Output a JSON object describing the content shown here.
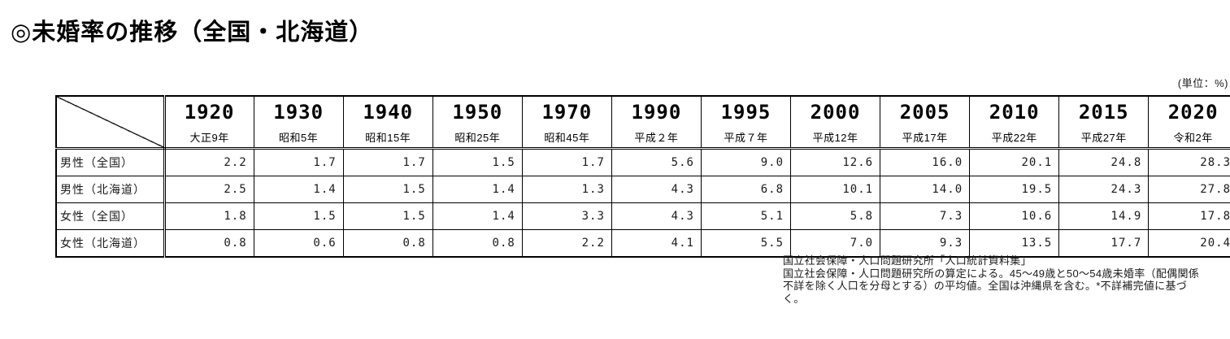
{
  "title": "◎未婚率の推移（全国・北海道）",
  "unit_label": "(単位：%)",
  "table": {
    "columns": [
      {
        "year": "1920",
        "era": "大正9年"
      },
      {
        "year": "1930",
        "era": "昭和5年"
      },
      {
        "year": "1940",
        "era": "昭和15年"
      },
      {
        "year": "1950",
        "era": "昭和25年"
      },
      {
        "year": "1970",
        "era": "昭和45年"
      },
      {
        "year": "1990",
        "era": "平成２年"
      },
      {
        "year": "1995",
        "era": "平成７年"
      },
      {
        "year": "2000",
        "era": "平成12年"
      },
      {
        "year": "2005",
        "era": "平成17年"
      },
      {
        "year": "2010",
        "era": "平成22年"
      },
      {
        "year": "2015",
        "era": "平成27年"
      },
      {
        "year": "2020",
        "era": "令和2年"
      }
    ],
    "rows": [
      {
        "label": "男性（全国）",
        "values": [
          "2.2",
          "1.7",
          "1.7",
          "1.5",
          "1.7",
          "5.6",
          "9.0",
          "12.6",
          "16.0",
          "20.1",
          "24.8",
          "28.3"
        ]
      },
      {
        "label": "男性（北海道）",
        "values": [
          "2.5",
          "1.4",
          "1.5",
          "1.4",
          "1.3",
          "4.3",
          "6.8",
          "10.1",
          "14.0",
          "19.5",
          "24.3",
          "27.8"
        ]
      },
      {
        "label": "女性（全国）",
        "values": [
          "1.8",
          "1.5",
          "1.5",
          "1.4",
          "3.3",
          "4.3",
          "5.1",
          "5.8",
          "7.3",
          "10.6",
          "14.9",
          "17.8"
        ]
      },
      {
        "label": "女性（北海道）",
        "values": [
          "0.8",
          "0.6",
          "0.8",
          "0.8",
          "2.2",
          "4.1",
          "5.5",
          "7.0",
          "9.3",
          "13.5",
          "17.7",
          "20.4"
        ]
      }
    ]
  },
  "footnote": {
    "lines": [
      "国立社会保障・人口問題研究所「人口統計資料集」",
      "国立社会保障・人口問題研究所の算定による。45～49歳と50～54歳未婚率（配偶関係",
      "不詳を除く人口を分母とする）の平均値。全国は沖縄県を含む。*不詳補完値に基づ",
      "く。"
    ]
  }
}
